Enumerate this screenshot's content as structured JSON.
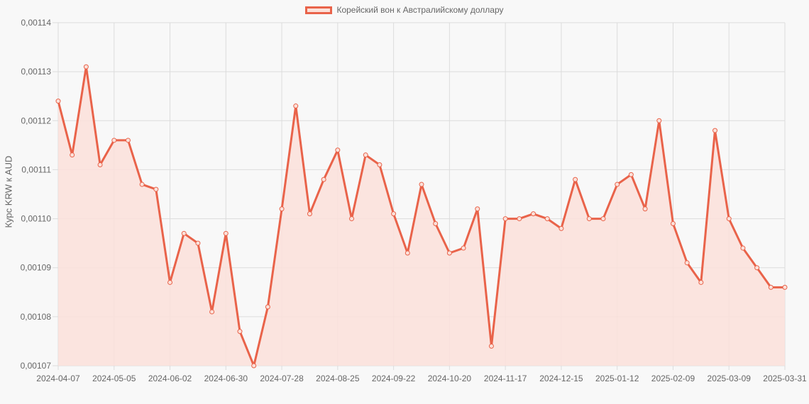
{
  "chart_data": {
    "type": "line",
    "title": "",
    "legend": {
      "position": "top",
      "entries": [
        "Корейский вон к Австралийскому доллару"
      ]
    },
    "xlabel": "",
    "ylabel": "Курс KRW к AUD",
    "ylim": [
      0.00107,
      0.00114
    ],
    "grid": true,
    "y_ticks": [
      "0,00114",
      "0,00113",
      "0,00112",
      "0,00111",
      "0,00110",
      "0,00109",
      "0,00108",
      "0,00107"
    ],
    "x_tick_labels": [
      "2024-04-07",
      "2024-05-05",
      "2024-06-02",
      "2024-06-30",
      "2024-07-28",
      "2024-08-25",
      "2024-09-22",
      "2024-10-20",
      "2024-11-17",
      "2024-12-15",
      "2025-01-12",
      "2025-02-09",
      "2025-03-09",
      "2025-03-31"
    ],
    "x": [
      "2024-04-07",
      "2024-04-14",
      "2024-04-21",
      "2024-04-28",
      "2024-05-05",
      "2024-05-12",
      "2024-05-19",
      "2024-05-26",
      "2024-06-02",
      "2024-06-09",
      "2024-06-16",
      "2024-06-23",
      "2024-06-30",
      "2024-07-07",
      "2024-07-14",
      "2024-07-21",
      "2024-07-28",
      "2024-08-04",
      "2024-08-11",
      "2024-08-18",
      "2024-08-25",
      "2024-09-01",
      "2024-09-08",
      "2024-09-15",
      "2024-09-22",
      "2024-09-29",
      "2024-10-06",
      "2024-10-13",
      "2024-10-20",
      "2024-10-27",
      "2024-11-03",
      "2024-11-10",
      "2024-11-17",
      "2024-11-24",
      "2024-12-01",
      "2024-12-08",
      "2024-12-15",
      "2024-12-22",
      "2024-12-29",
      "2025-01-05",
      "2025-01-12",
      "2025-01-19",
      "2025-01-26",
      "2025-02-02",
      "2025-02-09",
      "2025-02-16",
      "2025-02-23",
      "2025-03-02",
      "2025-03-09",
      "2025-03-16",
      "2025-03-23",
      "2025-03-30",
      "2025-03-31"
    ],
    "series": [
      {
        "name": "Корейский вон к Австралийскому доллару",
        "color": "#e9634a",
        "fill": "#fbe1da",
        "values": [
          0.001124,
          0.001113,
          0.001131,
          0.001111,
          0.001116,
          0.001116,
          0.001107,
          0.001106,
          0.001087,
          0.001097,
          0.001095,
          0.001081,
          0.001097,
          0.001077,
          0.00107,
          0.001082,
          0.001102,
          0.001123,
          0.001101,
          0.001108,
          0.001114,
          0.0011,
          0.001113,
          0.001111,
          0.001101,
          0.001093,
          0.001107,
          0.001099,
          0.001093,
          0.001094,
          0.001102,
          0.001074,
          0.0011,
          0.0011,
          0.001101,
          0.0011,
          0.001098,
          0.001108,
          0.0011,
          0.0011,
          0.001107,
          0.001109,
          0.001102,
          0.00112,
          0.001099,
          0.001091,
          0.001087,
          0.001118,
          0.0011,
          0.001094,
          0.00109,
          0.001086,
          0.001086
        ]
      }
    ]
  }
}
